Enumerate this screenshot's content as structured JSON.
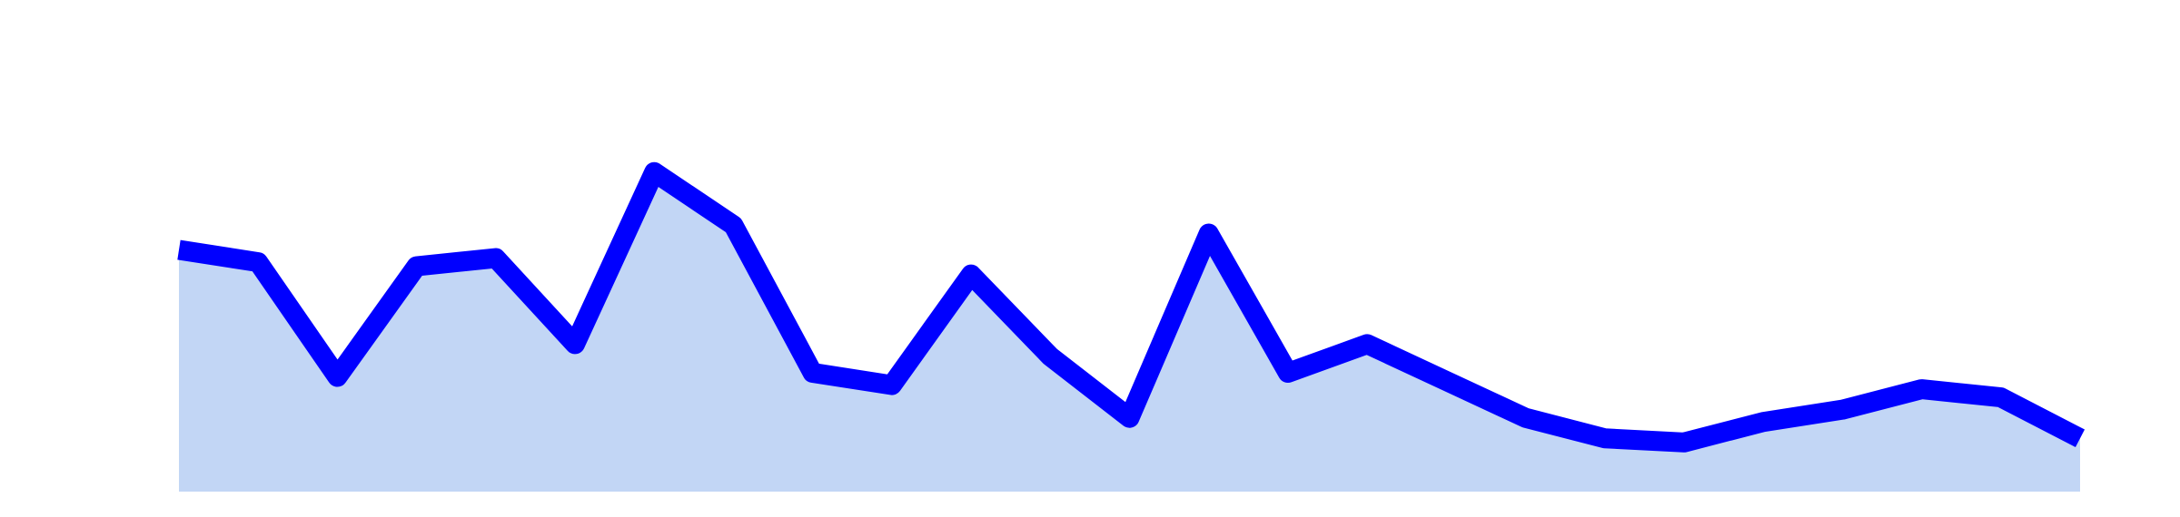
{
  "chart_data": {
    "type": "area",
    "x": [
      0,
      1,
      2,
      3,
      4,
      5,
      6,
      7,
      8,
      9,
      10,
      11,
      12,
      13,
      14,
      15,
      16,
      17,
      18,
      19,
      20,
      21,
      22,
      23,
      24
    ],
    "series": [
      {
        "values": [
          5.9,
          5.6,
          2.8,
          5.5,
          5.7,
          3.6,
          7.8,
          6.5,
          2.9,
          2.6,
          5.3,
          3.3,
          1.8,
          6.3,
          2.9,
          3.6,
          2.7,
          1.8,
          1.3,
          1.2,
          1.7,
          2.0,
          2.5,
          2.3,
          1.3
        ],
        "line_color": "#0000ff",
        "fill_color": "#c2d6f5"
      }
    ],
    "ylim": [
      0,
      12
    ],
    "grid": false,
    "legend": "none",
    "title": "",
    "xlabel": "",
    "ylabel": ""
  }
}
